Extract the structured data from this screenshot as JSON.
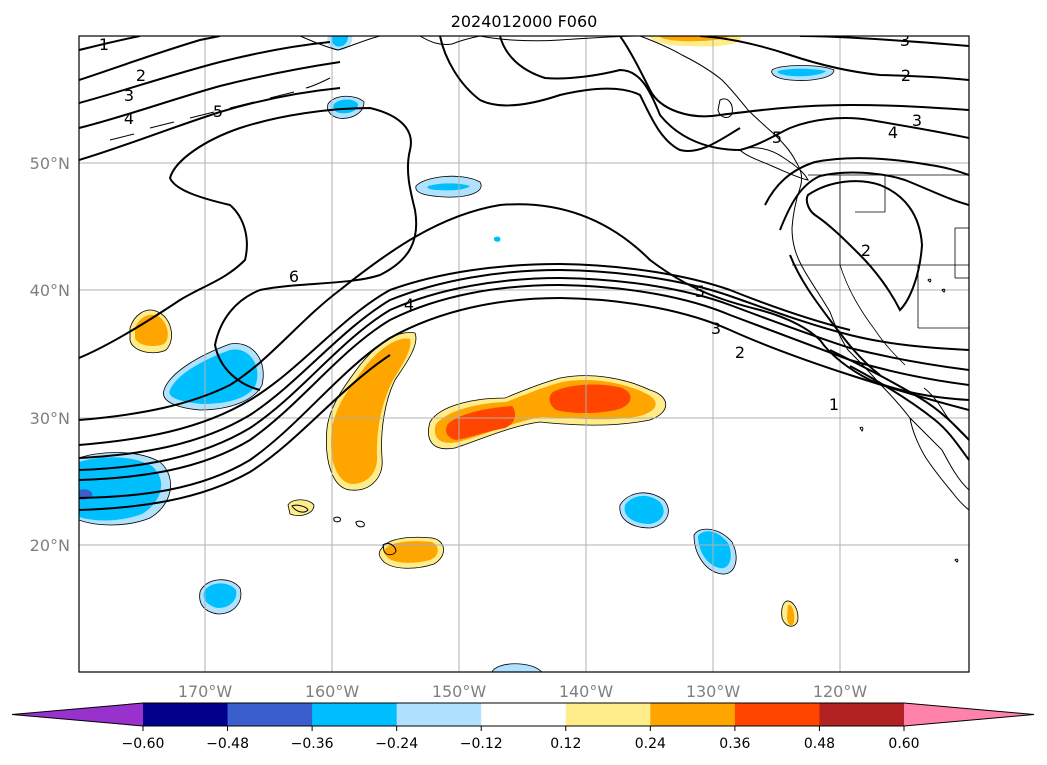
{
  "title": "2024012000 F060",
  "map": {
    "lon_range": [
      -180,
      -110
    ],
    "lat_range": [
      10,
      60
    ],
    "lat_labels": [
      "20°N",
      "30°N",
      "40°N",
      "50°N"
    ],
    "lon_labels": [
      "170°W",
      "160°W",
      "150°W",
      "140°W",
      "130°W",
      "120°W"
    ],
    "grid": true
  },
  "colorbar": {
    "orientation": "horizontal",
    "extend": "both",
    "tick_labels": [
      "−0.60",
      "−0.48",
      "−0.36",
      "−0.24",
      "−0.12",
      "0.12",
      "0.24",
      "0.36",
      "0.48",
      "0.60"
    ],
    "colors": [
      "#9932cc",
      "#00008b",
      "#3a5fcd",
      "#00bfff",
      "#b0e2ff",
      "#ffffff",
      "#ffec8b",
      "#ffa500",
      "#ff4500",
      "#b22222",
      "#ff82ab"
    ]
  },
  "contours": {
    "labels": [
      "1",
      "2",
      "3",
      "4",
      "5",
      "6",
      "5",
      "4",
      "3",
      "2",
      "1",
      "5",
      "4",
      "3",
      "2",
      "2",
      "3"
    ]
  }
}
